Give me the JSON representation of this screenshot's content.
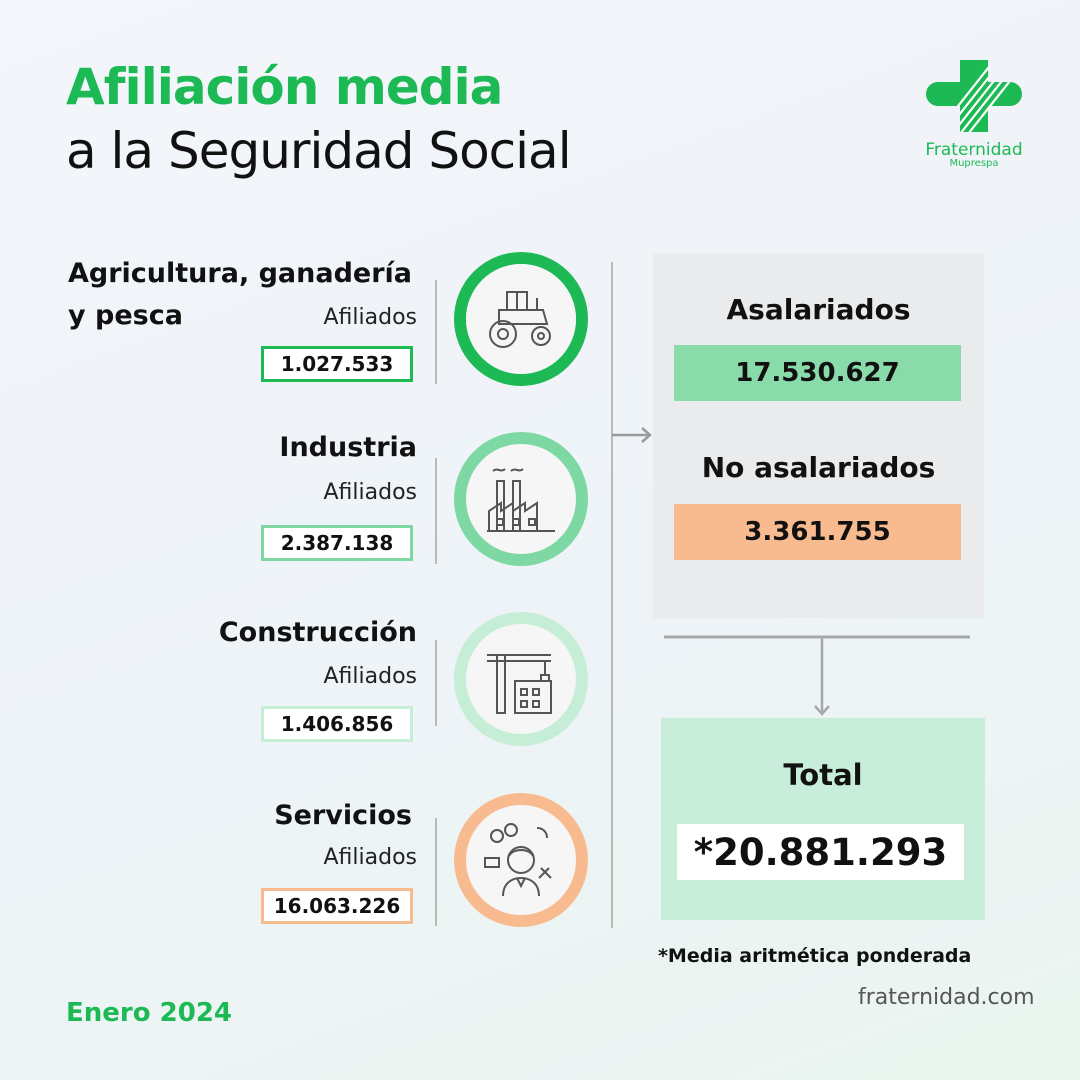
{
  "header": {
    "title_line1": "Afiliación media",
    "title_line2": "a la Seguridad Social"
  },
  "logo": {
    "name": "Fraternidad",
    "sub": "Muprespa",
    "icon": "cross-logo-icon"
  },
  "sectors": [
    {
      "name_line1": "Agricultura, ganadería",
      "name_line2": "y pesca",
      "label": "Afiliados",
      "value": "1.027.533",
      "icon": "tractor-icon",
      "color": "#1db954"
    },
    {
      "name_line1": "Industria",
      "label": "Afiliados",
      "value": "2.387.138",
      "icon": "factory-icon",
      "color": "#7dd8a4"
    },
    {
      "name_line1": "Construcción",
      "label": "Afiliados",
      "value": "1.406.856",
      "icon": "crane-building-icon",
      "color": "#c6eed7"
    },
    {
      "name_line1": "Servicios",
      "label": "Afiliados",
      "value": "16.063.226",
      "icon": "customer-service-icon",
      "color": "#f8bb8f"
    }
  ],
  "summary": {
    "asalariados_label": "Asalariados",
    "asalariados_value": "17.530.627",
    "asalariados_color": "#8adbaa",
    "no_asalariados_label": "No asalariados",
    "no_asalariados_value": "3.361.755",
    "no_asalariados_color": "#f8bb8f"
  },
  "total": {
    "label": "Total",
    "value": "*20.881.293"
  },
  "footnote": "*Media aritmética ponderada",
  "site": "fraternidad.com",
  "date": "Enero 2024"
}
